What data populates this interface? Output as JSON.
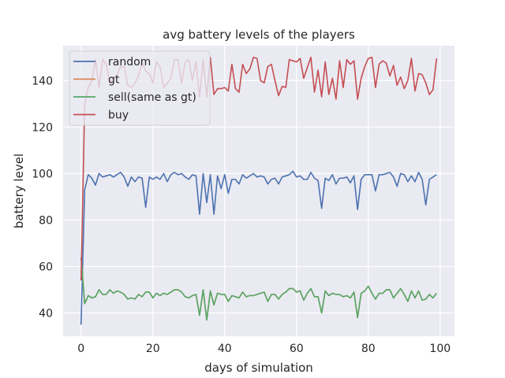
{
  "chart_data": {
    "type": "line",
    "title": "avg battery levels of the players",
    "xlabel": "days of simulation",
    "ylabel": "battery level",
    "xlim": [
      -5,
      104
    ],
    "ylim": [
      30,
      155
    ],
    "xticks": [
      0,
      20,
      40,
      60,
      80,
      100
    ],
    "yticks": [
      40,
      60,
      80,
      100,
      120,
      140
    ],
    "grid": true,
    "legend_position": "top-left",
    "x": [
      0,
      1,
      2,
      3,
      4,
      5,
      6,
      7,
      8,
      9,
      10,
      11,
      12,
      13,
      14,
      15,
      16,
      17,
      18,
      19,
      20,
      21,
      22,
      23,
      24,
      25,
      26,
      27,
      28,
      29,
      30,
      31,
      32,
      33,
      34,
      35,
      36,
      37,
      38,
      39,
      40,
      41,
      42,
      43,
      44,
      45,
      46,
      47,
      48,
      49,
      50,
      51,
      52,
      53,
      54,
      55,
      56,
      57,
      58,
      59,
      60,
      61,
      62,
      63,
      64,
      65,
      66,
      67,
      68,
      69,
      70,
      71,
      72,
      73,
      74,
      75,
      76,
      77,
      78,
      79,
      80,
      81,
      82,
      83,
      84,
      85,
      86,
      87,
      88,
      89,
      90,
      91,
      92,
      93,
      94,
      95,
      96,
      97,
      98,
      99
    ],
    "series": [
      {
        "name": "random",
        "color": "#4c72b0",
        "values": [
          35,
          93,
          99.5,
          98,
          95,
          100,
          98.5,
          99,
          99.5,
          98.5,
          99.5,
          100.5,
          98.5,
          94.5,
          98.5,
          96.5,
          98.5,
          98,
          85.5,
          98.5,
          97.5,
          98.5,
          97.5,
          100,
          96.5,
          99.5,
          100.5,
          99.5,
          100,
          98.5,
          97.5,
          99.5,
          99,
          82.5,
          100,
          87.5,
          99.5,
          82.5,
          99,
          93.5,
          99.5,
          91.5,
          97.5,
          97.5,
          95.5,
          99.5,
          98,
          99,
          100,
          98.5,
          99,
          98.5,
          95.5,
          97.5,
          98,
          95.5,
          98.5,
          99,
          99.5,
          101,
          98.5,
          99,
          97.5,
          97.5,
          100.5,
          98,
          97,
          85,
          98,
          97,
          99.5,
          95.5,
          98,
          98,
          98.5,
          96,
          99,
          84.5,
          97.5,
          99.5,
          99.5,
          99.5,
          92.5,
          99.5,
          99.5,
          100,
          100.5,
          98.5,
          94.5,
          100,
          99.5,
          96.5,
          99,
          96.5,
          100.5,
          97.5,
          86.5,
          97.5,
          98.5,
          99.5
        ]
      },
      {
        "name": "gt",
        "color": "#dd8452",
        "values": [
          64,
          44,
          47.5,
          46.5,
          47,
          50,
          48,
          48,
          50,
          48.5,
          49.5,
          49,
          48,
          46,
          46.5,
          46,
          48,
          47,
          49,
          49,
          46.5,
          48.5,
          47.5,
          48.5,
          48,
          49,
          50,
          50,
          49,
          47,
          46.5,
          47.5,
          48,
          39,
          50,
          37,
          49.5,
          43.5,
          48.5,
          48,
          48,
          45,
          47.5,
          47,
          46.5,
          49,
          47,
          47.5,
          47.5,
          48,
          48.5,
          49,
          45,
          48,
          48,
          46,
          48,
          49,
          50.5,
          50.5,
          49,
          49.5,
          45.5,
          48.5,
          50.5,
          47,
          47,
          40,
          49.5,
          47.5,
          48.5,
          48,
          48,
          47,
          47.5,
          46.5,
          49,
          38,
          48.5,
          49.5,
          51.5,
          48.5,
          46,
          48.5,
          48.5,
          50,
          50,
          46.5,
          48.5,
          50.5,
          48,
          45,
          49.5,
          46.5,
          49.5,
          45.5,
          46,
          48,
          46.5,
          48.5
        ]
      },
      {
        "name": "sell(same as gt)",
        "color": "#55a868",
        "values": [
          64,
          44,
          47.5,
          46.5,
          47,
          50,
          48,
          48,
          50,
          48.5,
          49.5,
          49,
          48,
          46,
          46.5,
          46,
          48,
          47,
          49,
          49,
          46.5,
          48.5,
          47.5,
          48.5,
          48,
          49,
          50,
          50,
          49,
          47,
          46.5,
          47.5,
          48,
          39,
          50,
          37,
          49.5,
          43.5,
          48.5,
          48,
          48,
          45,
          47.5,
          47,
          46.5,
          49,
          47,
          47.5,
          47.5,
          48,
          48.5,
          49,
          45,
          48,
          48,
          46,
          48,
          49,
          50.5,
          50.5,
          49,
          49.5,
          45.5,
          48.5,
          50.5,
          47,
          47,
          40,
          49.5,
          47.5,
          48.5,
          48,
          48,
          47,
          47.5,
          46.5,
          49,
          38,
          48.5,
          49.5,
          51.5,
          48.5,
          46,
          48.5,
          48.5,
          50,
          50,
          46.5,
          48.5,
          50.5,
          48,
          45,
          49.5,
          46.5,
          49.5,
          45.5,
          46,
          48,
          46.5,
          48.5
        ]
      },
      {
        "name": "buy",
        "color": "#c44e52",
        "values": [
          54,
          130,
          137,
          140,
          149,
          137,
          149,
          147,
          139,
          141,
          142,
          146,
          146,
          138,
          137,
          139,
          142,
          148,
          144,
          143,
          139,
          148,
          146,
          137,
          139,
          141,
          149,
          149,
          139,
          148,
          149,
          140,
          148,
          133,
          149,
          133,
          150,
          134,
          136.5,
          136.5,
          137,
          135.5,
          147,
          136.5,
          135,
          147,
          143,
          145,
          150,
          149.5,
          140,
          139,
          146,
          147,
          140,
          133.5,
          137.5,
          137,
          149,
          148.5,
          148,
          149.5,
          141,
          145.5,
          150,
          135,
          144.5,
          133,
          148,
          134,
          141,
          132,
          148.5,
          137,
          149,
          147,
          148.5,
          132,
          141,
          146,
          149.5,
          150,
          137,
          147,
          148.5,
          147.5,
          142,
          146.5,
          138,
          141.5,
          136.5,
          140,
          149.5,
          135.5,
          143,
          142.5,
          139,
          134,
          136,
          149.5
        ]
      }
    ]
  }
}
